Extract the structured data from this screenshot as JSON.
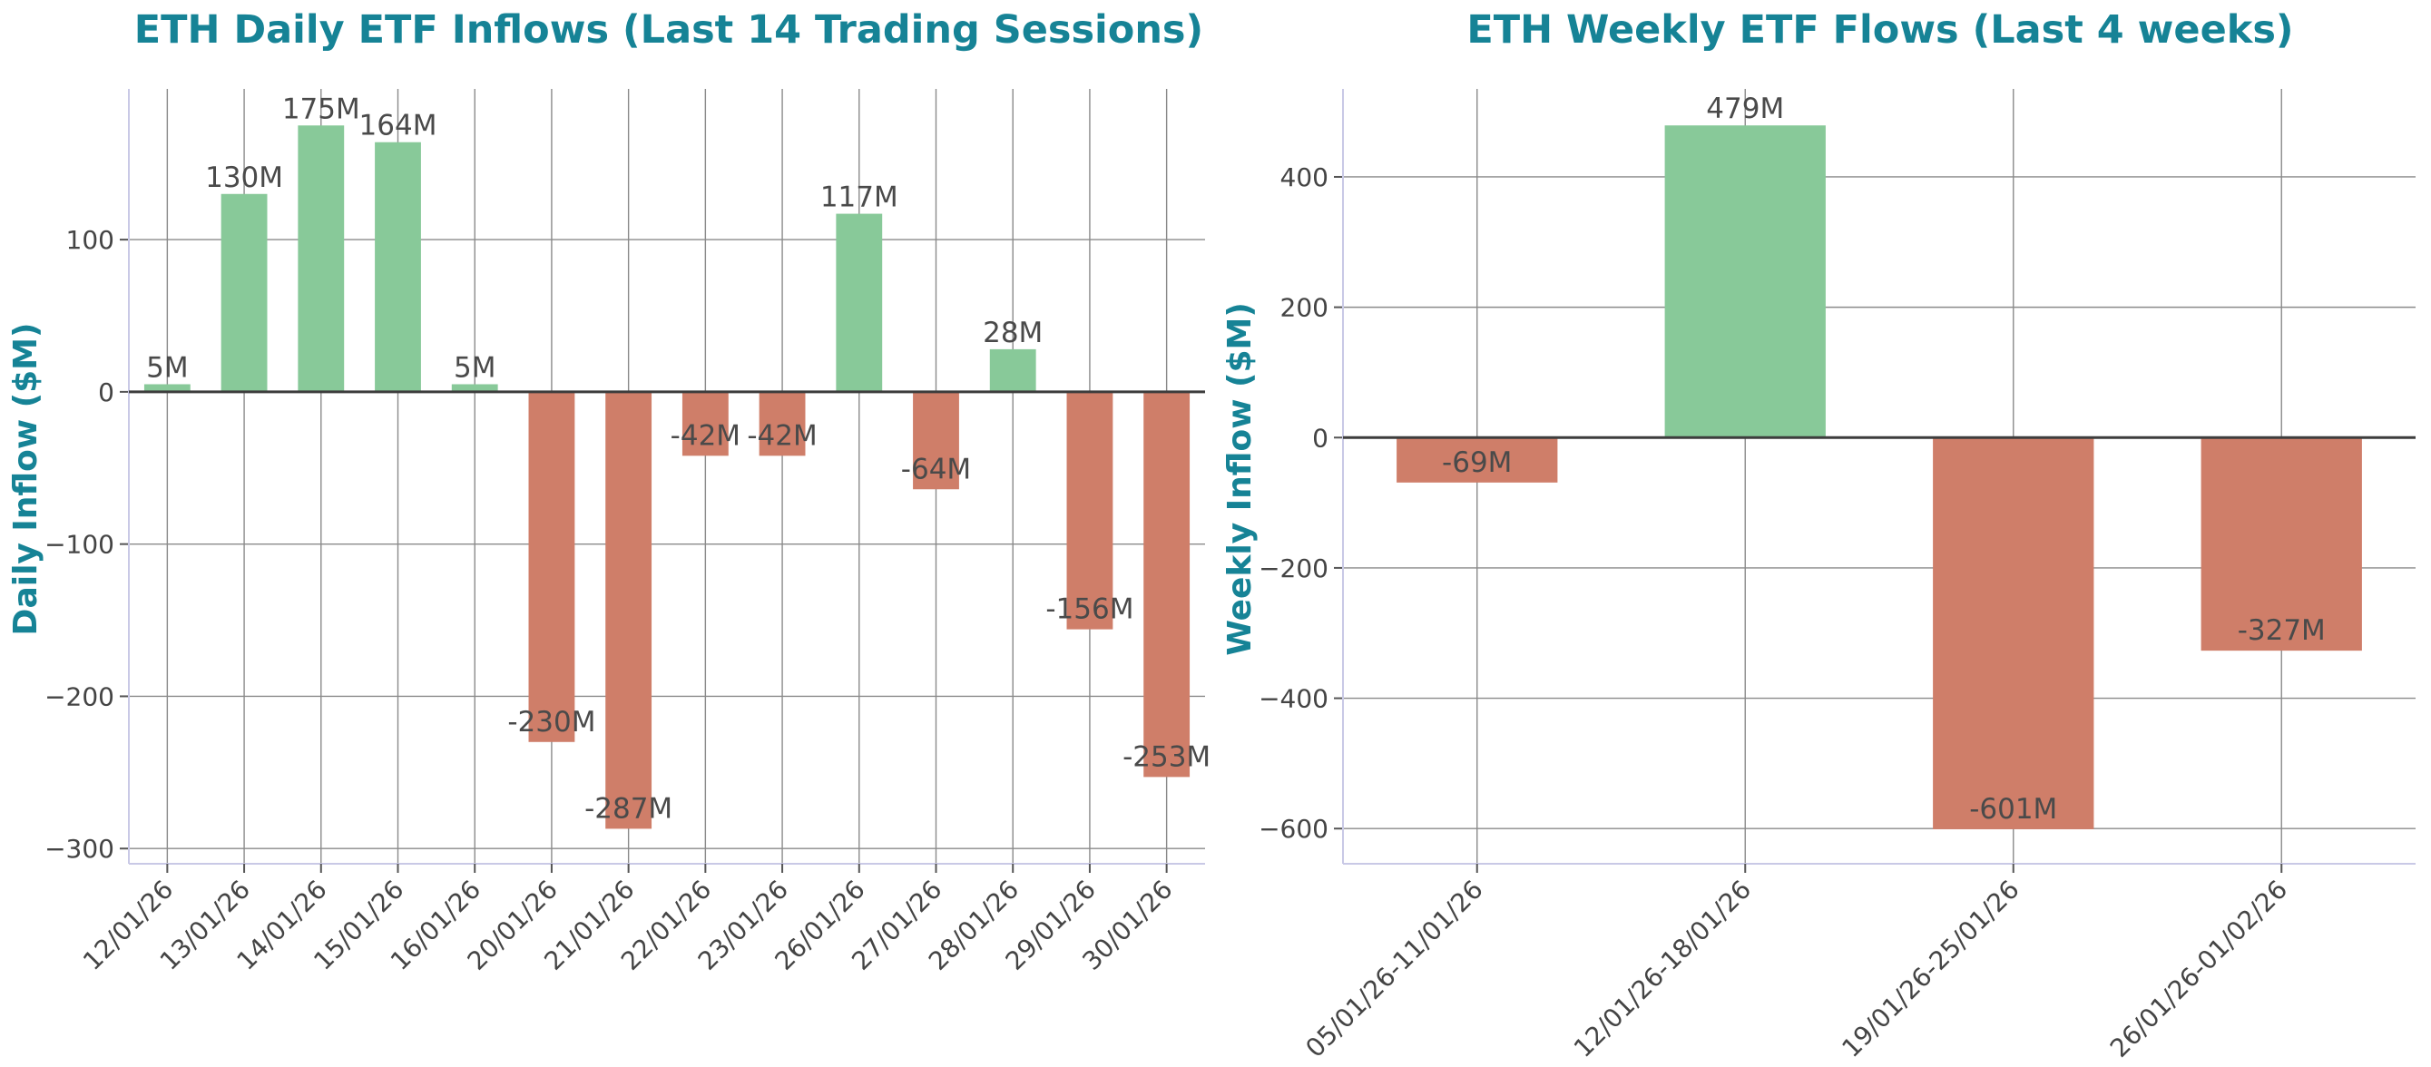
{
  "colors": {
    "positive": "#88c999",
    "negative": "#cf7e69",
    "title": "#168396"
  },
  "chart_data": [
    {
      "type": "bar",
      "title": "ETH Daily ETF Inflows (Last 14 Trading Sessions)",
      "xlabel": "",
      "ylabel": "Daily Inflow ($M)",
      "categories": [
        "12/01/26",
        "13/01/26",
        "14/01/26",
        "15/01/26",
        "16/01/26",
        "20/01/26",
        "21/01/26",
        "22/01/26",
        "23/01/26",
        "26/01/26",
        "27/01/26",
        "28/01/26",
        "29/01/26",
        "30/01/26"
      ],
      "values": [
        5,
        130,
        175,
        164,
        5,
        -230,
        -287,
        -42,
        -42,
        117,
        -64,
        28,
        -156,
        -253
      ],
      "labels": [
        "5M",
        "130M",
        "175M",
        "164M",
        "5M",
        "-230M",
        "-287M",
        "-42M",
        "-42M",
        "117M",
        "-64M",
        "28M",
        "-156M",
        "-253M"
      ],
      "yticks": [
        100,
        0,
        -100,
        -200,
        -300
      ],
      "ytick_labels": [
        "100",
        "0",
        "−100",
        "−200",
        "−300"
      ],
      "ylim": [
        -310,
        199
      ],
      "grid": true,
      "legend": "none"
    },
    {
      "type": "bar",
      "title": "ETH Weekly ETF Flows (Last 4 weeks)",
      "xlabel": "",
      "ylabel": "Weekly Inflow ($M)",
      "categories": [
        "05/01/26-11/01/26",
        "12/01/26-18/01/26",
        "19/01/26-25/01/26",
        "26/01/26-01/02/26"
      ],
      "values": [
        -69,
        479,
        -601,
        -327
      ],
      "labels": [
        "-69M",
        "479M",
        "-601M",
        "-327M"
      ],
      "yticks": [
        400,
        200,
        0,
        -200,
        -400,
        -600
      ],
      "ytick_labels": [
        "400",
        "200",
        "0",
        "−200",
        "−400",
        "−600"
      ],
      "ylim": [
        -654,
        535
      ],
      "grid": true,
      "legend": "none"
    }
  ]
}
